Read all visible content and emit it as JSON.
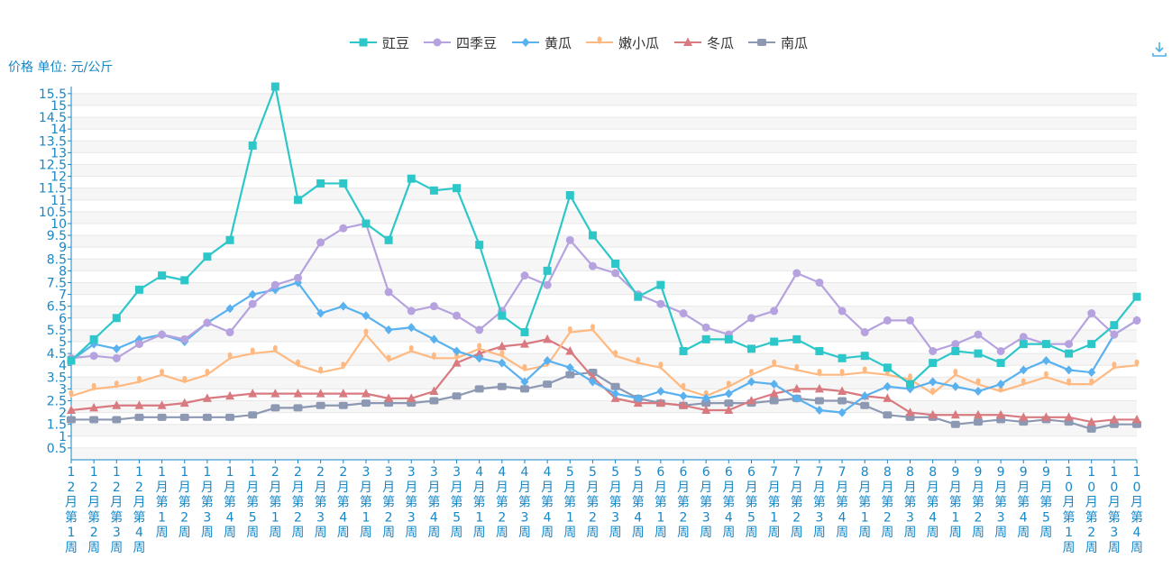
{
  "chart_data": {
    "type": "line",
    "title": "",
    "ylabel": "价格 单位: 元/公斤",
    "xlabel": "",
    "ylim": [
      0,
      15.8
    ],
    "yticks": [
      0.5,
      1,
      1.5,
      2,
      2.5,
      3,
      3.5,
      4,
      4.5,
      5,
      5.5,
      6,
      6.5,
      7,
      7.5,
      8,
      8.5,
      9,
      9.5,
      10,
      10.5,
      11,
      11.5,
      12,
      12.5,
      13,
      13.5,
      14,
      14.5,
      15,
      15.5
    ],
    "grid": true,
    "legend_position": "top-center",
    "categories": [
      "12月第1周",
      "12月第2周",
      "12月第3周",
      "12月第4周",
      "1月第1周",
      "1月第2周",
      "1月第3周",
      "1月第4周",
      "1月第5周",
      "2月第1周",
      "2月第2周",
      "2月第3周",
      "2月第4周",
      "3月第1周",
      "3月第2周",
      "3月第3周",
      "3月第4周",
      "3月第5周",
      "4月第1周",
      "4月第2周",
      "4月第3周",
      "4月第4周",
      "5月第1周",
      "5月第2周",
      "5月第3周",
      "5月第4周",
      "6月第1周",
      "6月第2周",
      "6月第3周",
      "6月第4周",
      "6月第5周",
      "7月第1周",
      "7月第2周",
      "7月第3周",
      "7月第4周",
      "8月第1周",
      "8月第2周",
      "8月第3周",
      "8月第4周",
      "9月第1周",
      "9月第2周",
      "9月第3周",
      "9月第4周",
      "9月第5周",
      "10月第1周",
      "10月第2周",
      "10月第3周",
      "10月第4周"
    ],
    "series": [
      {
        "name": "豇豆",
        "color": "#2ec7c9",
        "symbol": "square",
        "values": [
          4.2,
          5.1,
          6.0,
          7.2,
          7.8,
          7.6,
          8.6,
          9.3,
          13.3,
          15.8,
          11.0,
          11.7,
          11.7,
          10.0,
          9.3,
          11.9,
          11.4,
          11.5,
          9.1,
          6.1,
          5.4,
          8.0,
          11.2,
          9.5,
          8.3,
          6.9,
          7.4,
          4.6,
          5.1,
          5.1,
          4.7,
          5.0,
          5.1,
          4.6,
          4.3,
          4.4,
          3.9,
          3.2,
          4.1,
          4.6,
          4.5,
          4.1,
          4.9,
          4.9,
          4.5,
          4.9,
          5.7,
          6.9
        ]
      },
      {
        "name": "四季豆",
        "color": "#b6a2de",
        "symbol": "circle",
        "values": [
          4.3,
          4.4,
          4.3,
          4.9,
          5.3,
          5.1,
          5.8,
          5.4,
          6.6,
          7.4,
          7.7,
          9.2,
          9.8,
          10.0,
          7.1,
          6.3,
          6.5,
          6.1,
          5.5,
          6.3,
          7.8,
          7.4,
          9.3,
          8.2,
          7.9,
          7.0,
          6.6,
          6.2,
          5.6,
          5.3,
          6.0,
          6.3,
          7.9,
          7.5,
          6.3,
          5.4,
          5.9,
          5.9,
          4.6,
          4.9,
          5.3,
          4.6,
          5.2,
          4.9,
          4.9,
          6.2,
          5.3,
          5.9
        ]
      },
      {
        "name": "黄瓜",
        "color": "#5ab1ef",
        "symbol": "diamond",
        "values": [
          4.2,
          4.9,
          4.7,
          5.1,
          5.3,
          5.0,
          5.8,
          6.4,
          7.0,
          7.2,
          7.5,
          6.2,
          6.5,
          6.1,
          5.5,
          5.6,
          5.1,
          4.6,
          4.3,
          4.1,
          3.3,
          4.2,
          3.9,
          3.3,
          2.8,
          2.6,
          2.9,
          2.7,
          2.6,
          2.8,
          3.3,
          3.2,
          2.6,
          2.1,
          2.0,
          2.7,
          3.1,
          3.0,
          3.3,
          3.1,
          2.9,
          3.2,
          3.8,
          4.2,
          3.8,
          3.7,
          5.3,
          5.9
        ]
      },
      {
        "name": "嫩小瓜",
        "color": "#ffb980",
        "symbol": "pin",
        "values": [
          2.7,
          3.0,
          3.1,
          3.3,
          3.6,
          3.3,
          3.6,
          4.3,
          4.5,
          4.6,
          4.0,
          3.7,
          3.9,
          5.3,
          4.2,
          4.6,
          4.3,
          4.3,
          4.7,
          4.4,
          3.8,
          4.0,
          5.4,
          5.5,
          4.4,
          4.1,
          3.9,
          3.0,
          2.7,
          3.1,
          3.6,
          4.0,
          3.8,
          3.6,
          3.6,
          3.7,
          3.6,
          3.4,
          2.8,
          3.6,
          3.2,
          2.9,
          3.2,
          3.5,
          3.2,
          3.2,
          3.9,
          4.0
        ]
      },
      {
        "name": "冬瓜",
        "color": "#d87a80",
        "symbol": "triangle",
        "values": [
          2.1,
          2.2,
          2.3,
          2.3,
          2.3,
          2.4,
          2.6,
          2.7,
          2.8,
          2.8,
          2.8,
          2.8,
          2.8,
          2.8,
          2.6,
          2.6,
          2.9,
          4.1,
          4.5,
          4.8,
          4.9,
          5.1,
          4.6,
          3.5,
          2.6,
          2.4,
          2.4,
          2.3,
          2.1,
          2.1,
          2.5,
          2.8,
          3.0,
          3.0,
          2.9,
          2.7,
          2.6,
          2.0,
          1.9,
          1.9,
          1.9,
          1.9,
          1.8,
          1.8,
          1.8,
          1.6,
          1.7,
          1.7
        ]
      },
      {
        "name": "南瓜",
        "color": "#8d98b3",
        "symbol": "roundRect",
        "values": [
          1.7,
          1.7,
          1.7,
          1.8,
          1.8,
          1.8,
          1.8,
          1.8,
          1.9,
          2.2,
          2.2,
          2.3,
          2.3,
          2.4,
          2.4,
          2.4,
          2.5,
          2.7,
          3.0,
          3.1,
          3.0,
          3.2,
          3.6,
          3.7,
          3.1,
          2.6,
          2.4,
          2.3,
          2.4,
          2.4,
          2.4,
          2.5,
          2.6,
          2.5,
          2.5,
          2.3,
          1.9,
          1.8,
          1.8,
          1.5,
          1.6,
          1.7,
          1.6,
          1.7,
          1.6,
          1.3,
          1.5,
          1.5
        ]
      }
    ]
  },
  "toolbar": {
    "download_icon": "download-icon"
  }
}
